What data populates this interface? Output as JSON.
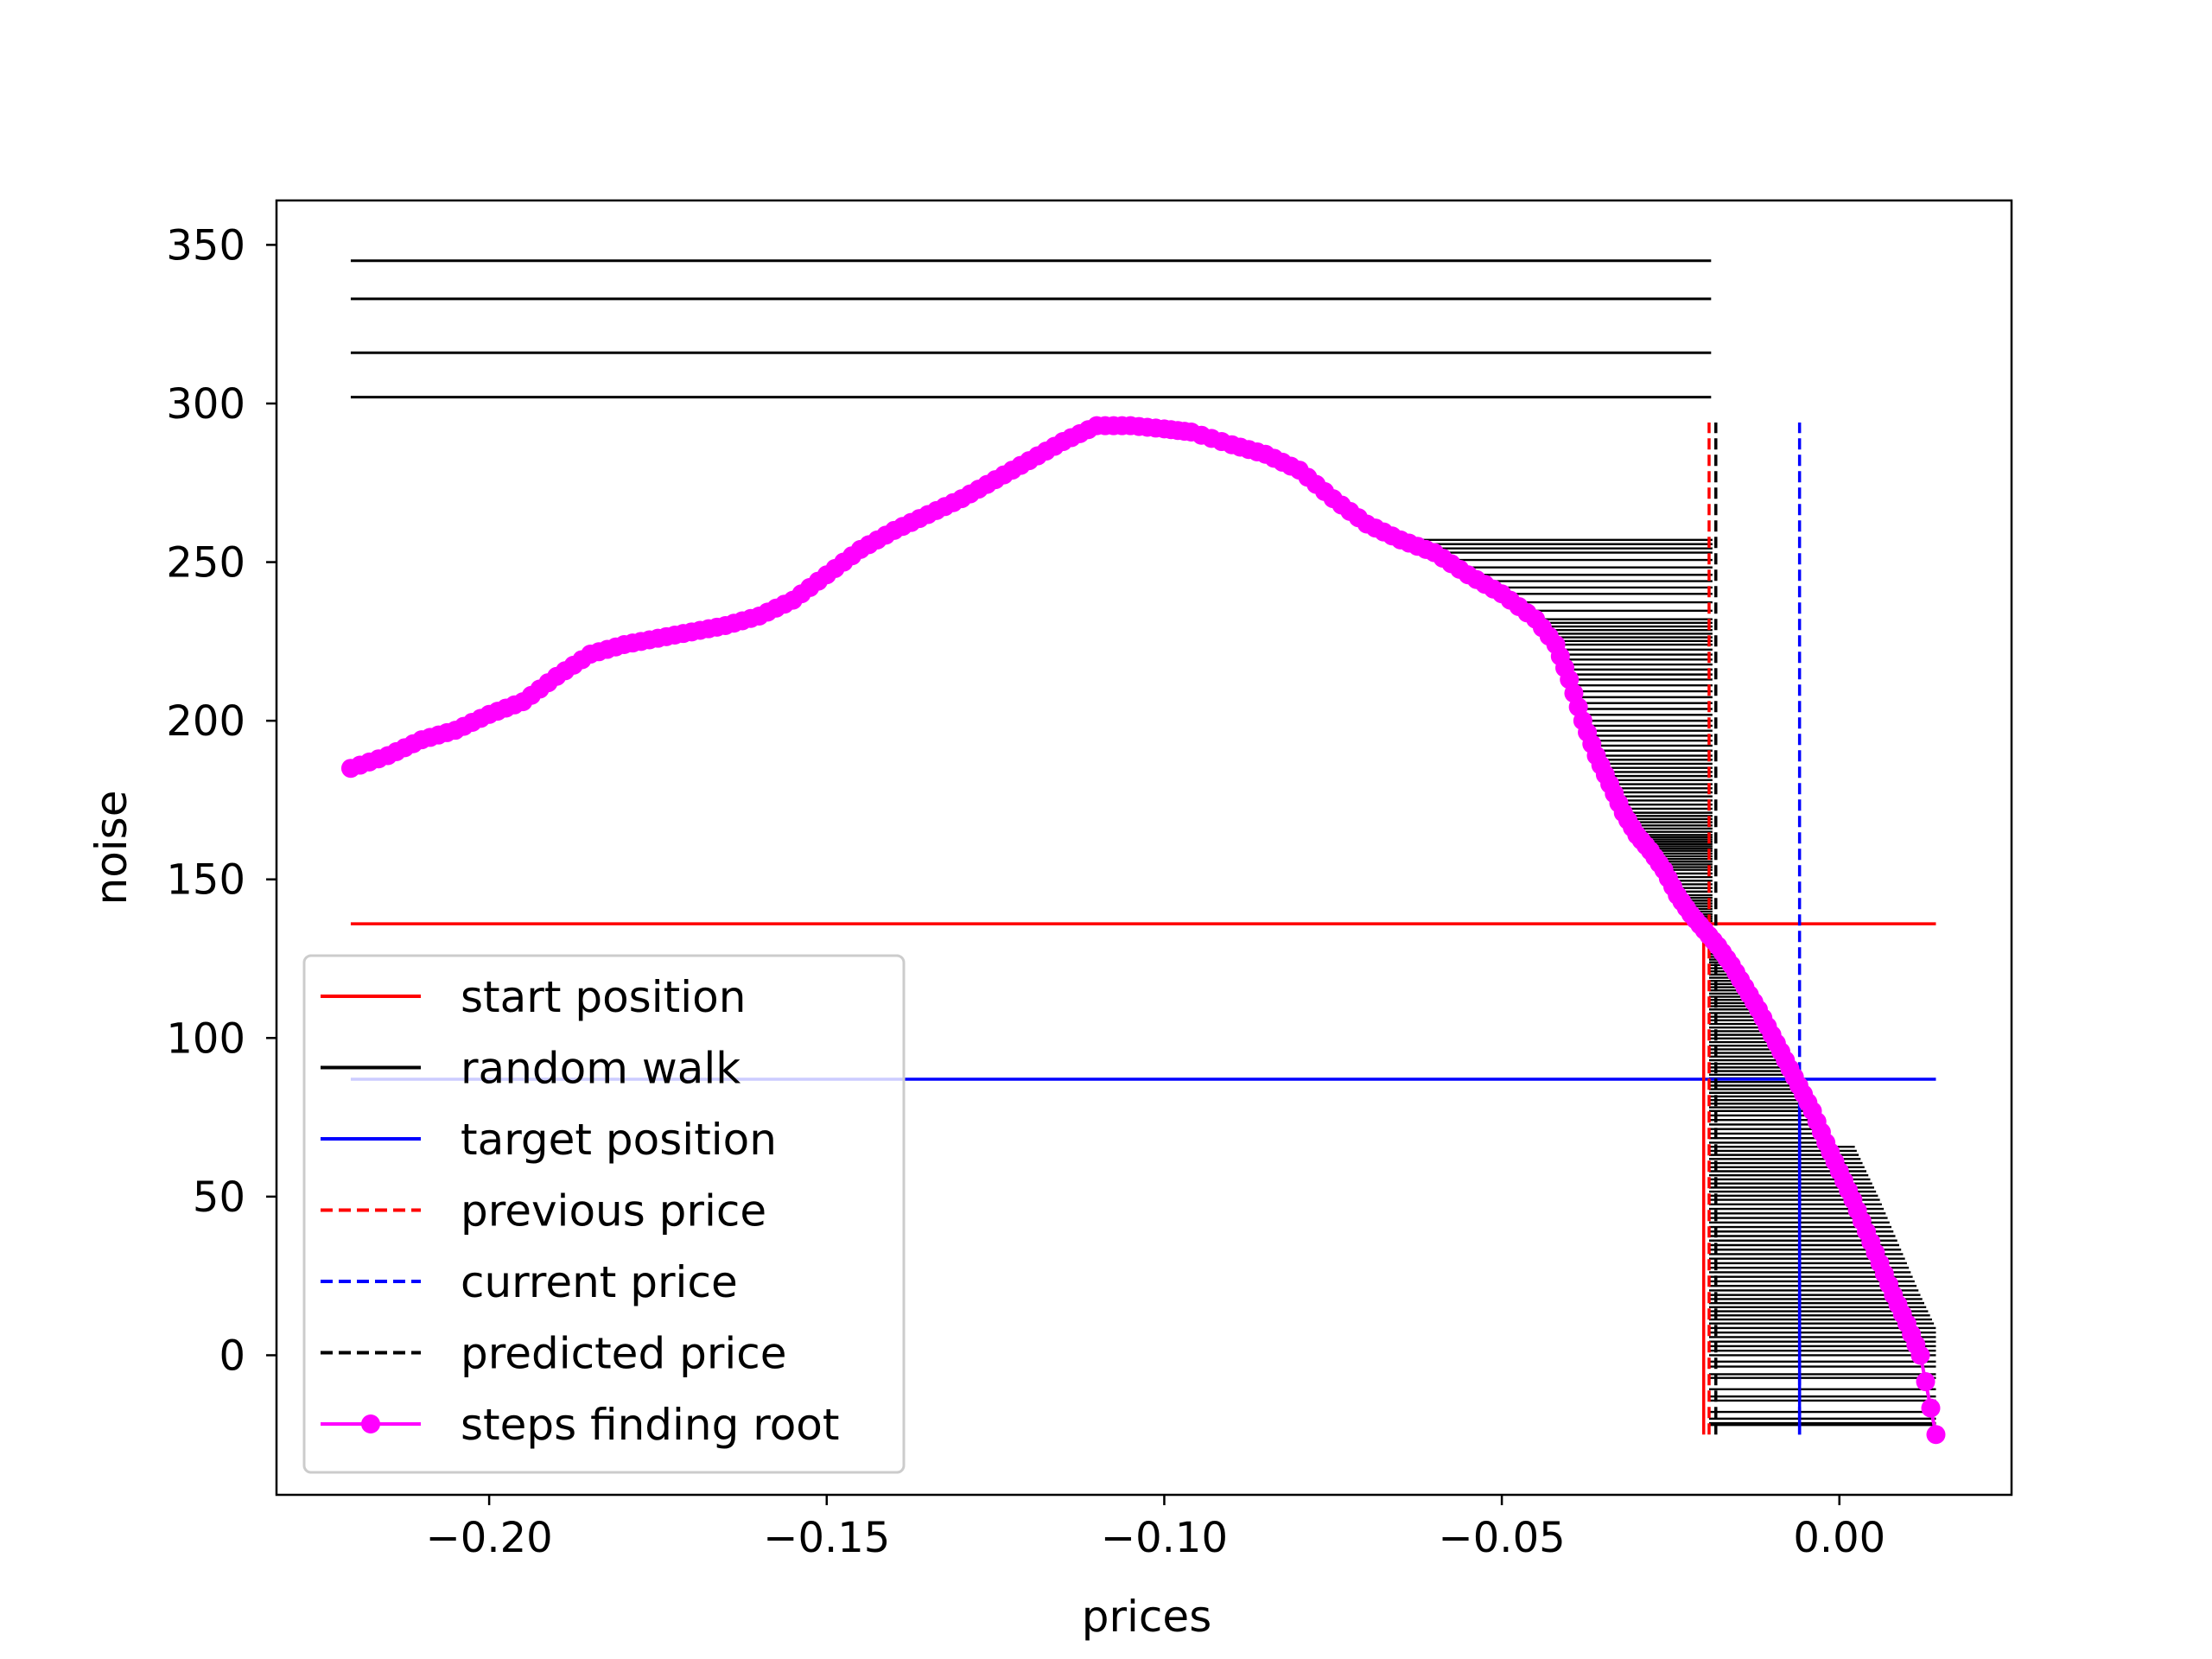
{
  "chart_data": {
    "type": "line",
    "title": "",
    "xlabel": "prices",
    "ylabel": "noise",
    "xlim": [
      -0.2315,
      0.0255
    ],
    "ylim": [
      -44,
      364
    ],
    "xticks": [
      -0.2,
      -0.15,
      -0.1,
      -0.05,
      0.0
    ],
    "xtick_labels": [
      "−0.20",
      "−0.15",
      "−0.10",
      "−0.05",
      "0.00"
    ],
    "yticks": [
      0,
      50,
      100,
      150,
      200,
      250,
      300,
      350
    ],
    "ytick_labels": [
      "0",
      "50",
      "100",
      "150",
      "200",
      "250",
      "300",
      "350"
    ],
    "grid": false,
    "legend_position": "lower left",
    "colors": {
      "start": "#ff0000",
      "walk": "#000000",
      "target": "#0000ff",
      "previous": "#ff0000",
      "current": "#0000ff",
      "predicted": "#000000",
      "steps": "#ff00ff"
    },
    "legend": [
      {
        "label": "start position",
        "color": "#ff0000",
        "style": "solid"
      },
      {
        "label": "random walk",
        "color": "#000000",
        "style": "solid"
      },
      {
        "label": "target position",
        "color": "#0000ff",
        "style": "solid"
      },
      {
        "label": "previous price",
        "color": "#ff0000",
        "style": "dashed"
      },
      {
        "label": "current price",
        "color": "#0000ff",
        "style": "dashed"
      },
      {
        "label": "predicted price",
        "color": "#000000",
        "style": "dashed"
      },
      {
        "label": "steps finding root",
        "color": "#ff00ff",
        "style": "marker-line"
      }
    ],
    "start_position": {
      "y": 136,
      "x_range": [
        -0.2205,
        0.0143
      ]
    },
    "target_position": {
      "y": 87,
      "x_range": [
        -0.2205,
        0.0143
      ]
    },
    "previous_price": {
      "x": -0.0193,
      "y_range": [
        -25,
        294
      ]
    },
    "current_price": {
      "x": -0.0059,
      "y_range": [
        -25,
        294
      ]
    },
    "predicted_price": {
      "x": -0.0183,
      "y_range": [
        -25,
        294
      ]
    },
    "price_start_line": {
      "x": -0.0201,
      "y_range": [
        -25,
        136
      ]
    },
    "target_price_line": {
      "x": -0.0059,
      "y_range": [
        -25,
        87
      ]
    },
    "random_walk_top": [
      {
        "y": 345,
        "x_range": [
          -0.2205,
          -0.019
        ]
      },
      {
        "y": 333,
        "x_range": [
          -0.2205,
          -0.019
        ]
      },
      {
        "y": 316,
        "x_range": [
          -0.2205,
          -0.019
        ]
      },
      {
        "y": 302,
        "x_range": [
          -0.2205,
          -0.019
        ]
      }
    ],
    "series": [
      {
        "name": "steps finding root",
        "x": [
          -0.2205,
          -0.215,
          -0.21,
          -0.205,
          -0.2,
          -0.195,
          -0.19,
          -0.185,
          -0.18,
          -0.175,
          -0.17,
          -0.165,
          -0.16,
          -0.155,
          -0.15,
          -0.145,
          -0.14,
          -0.135,
          -0.13,
          -0.125,
          -0.12,
          -0.115,
          -0.11,
          -0.105,
          -0.1,
          -0.096,
          -0.09,
          -0.085,
          -0.08,
          -0.075,
          -0.07,
          -0.065,
          -0.06,
          -0.055,
          -0.05,
          -0.045,
          -0.042,
          -0.04,
          -0.038,
          -0.036,
          -0.034,
          -0.032,
          -0.03,
          -0.028,
          -0.026,
          -0.024,
          -0.022,
          -0.02,
          -0.018,
          -0.016,
          -0.014,
          -0.012,
          -0.01,
          -0.008,
          -0.006,
          -0.004,
          -0.002,
          0.0,
          0.002,
          0.004,
          0.006,
          0.008,
          0.01,
          0.012,
          0.0143
        ],
        "y": [
          185,
          189,
          194,
          197,
          202,
          206,
          214,
          221,
          224,
          226,
          228,
          230,
          233,
          238,
          246,
          254,
          260,
          265,
          270,
          276,
          282,
          288,
          293,
          293,
          292,
          291,
          287,
          284,
          279,
          270,
          262,
          257,
          253,
          246,
          240,
          232,
          224,
          213,
          200,
          189,
          180,
          171,
          164,
          159,
          153,
          145,
          139,
          134,
          129,
          123,
          116,
          109,
          101,
          93,
          85,
          77,
          67,
          58,
          49,
          39,
          29,
          19,
          10,
          0,
          -25
        ]
      }
    ]
  }
}
